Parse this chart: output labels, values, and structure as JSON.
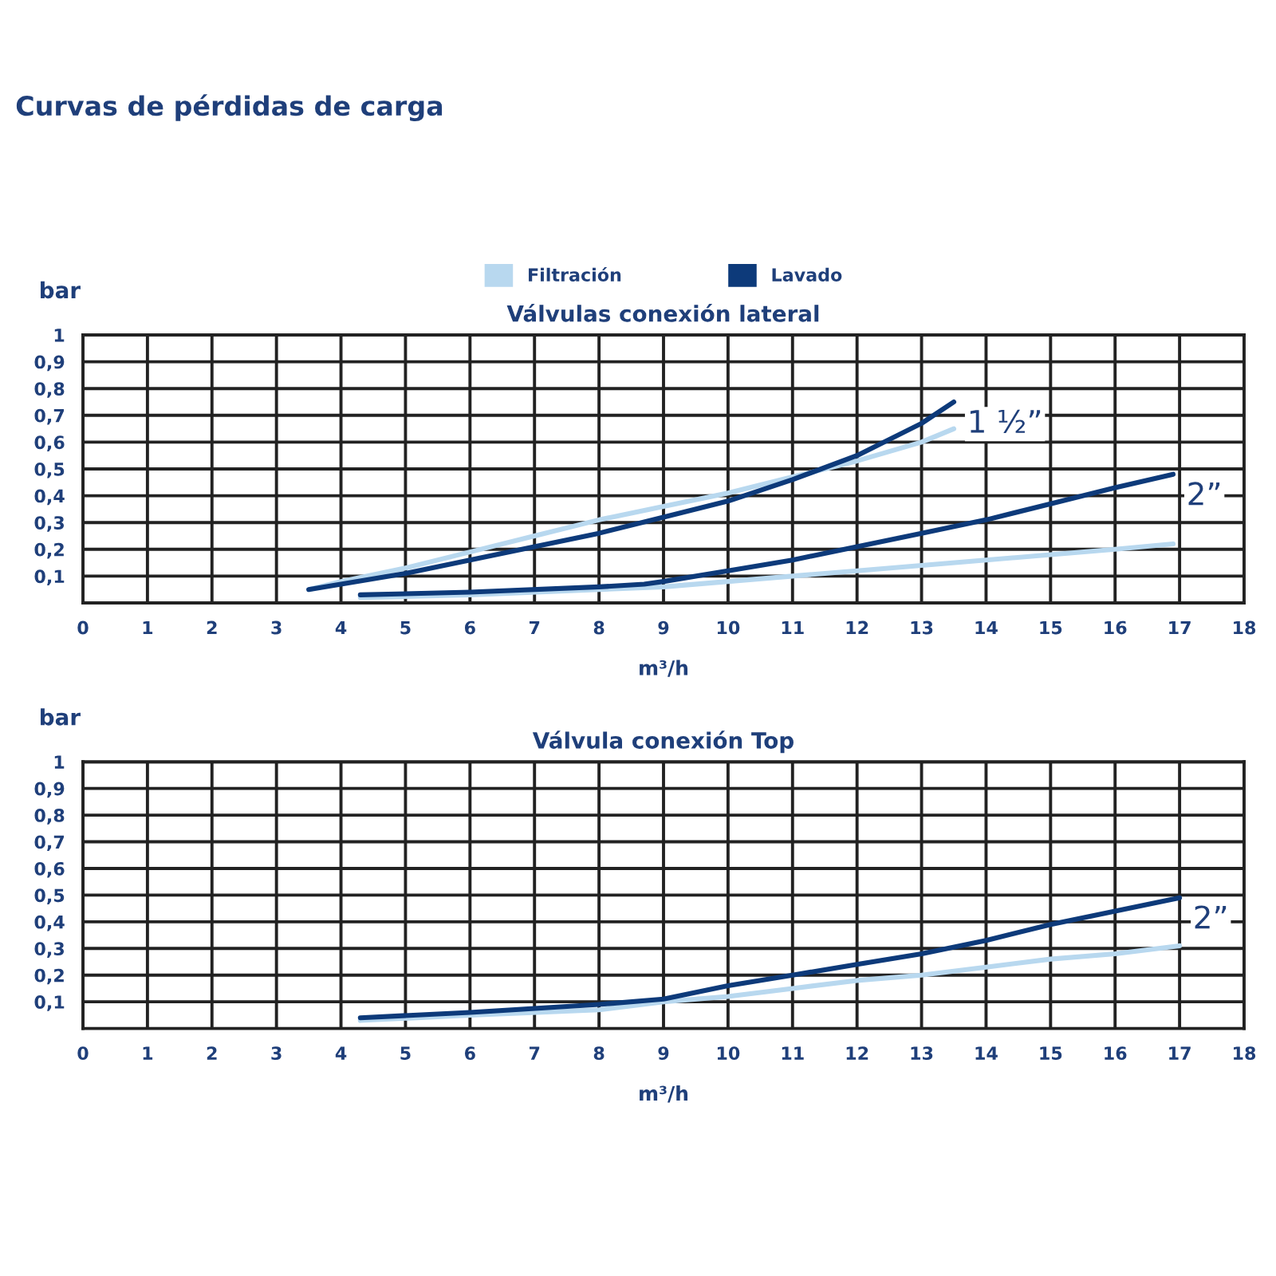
{
  "chart_data": [
    {
      "type": "line",
      "title": "Válvulas conexión lateral",
      "xlabel": "m³/h",
      "ylabel": "bar",
      "legend": "top",
      "grid": true,
      "line_style": "solid",
      "xlim": [
        0,
        18
      ],
      "ylim": [
        0,
        1
      ],
      "xticks": [
        0,
        1,
        2,
        3,
        4,
        5,
        6,
        7,
        8,
        9,
        10,
        11,
        12,
        13,
        14,
        15,
        16,
        17,
        18
      ],
      "yticks": [
        {
          "value": 0.1,
          "label": "0,1"
        },
        {
          "value": 0.2,
          "label": "0,2"
        },
        {
          "value": 0.3,
          "label": "0,3"
        },
        {
          "value": 0.4,
          "label": "0,4"
        },
        {
          "value": 0.5,
          "label": "0,5"
        },
        {
          "value": 0.6,
          "label": "0,6"
        },
        {
          "value": 0.7,
          "label": "0,7"
        },
        {
          "value": 0.8,
          "label": "0,8"
        },
        {
          "value": 0.9,
          "label": "0,9"
        },
        1
      ],
      "annotations": [
        {
          "text": "Curvas de pérdidas de carga"
        },
        {
          "text": "1 ½”",
          "x": 13.5,
          "y": 0.75
        },
        {
          "text": "2”",
          "x": 16.9,
          "y": 0.48
        }
      ],
      "series": [
        {
          "name": "Filtración",
          "color": "#b8d8ef",
          "x": [
            3.5,
            4,
            5,
            6,
            7,
            8,
            9,
            10,
            11,
            12,
            13,
            13.5
          ],
          "values": [
            0.05,
            0.08,
            0.13,
            0.19,
            0.25,
            0.31,
            0.36,
            0.41,
            0.47,
            0.53,
            0.6,
            0.65
          ]
        },
        {
          "name": "Lavado",
          "color": "#0d3a7a",
          "x": [
            3.5,
            5,
            6,
            7,
            8,
            9,
            10,
            11,
            12,
            13,
            13.5
          ],
          "values": [
            0.05,
            0.11,
            0.16,
            0.21,
            0.26,
            0.32,
            0.38,
            0.46,
            0.55,
            0.67,
            0.75
          ]
        },
        {
          "color": "#b8d8ef",
          "x": [
            4.3,
            6,
            8,
            9,
            10,
            11,
            12,
            13,
            14,
            15,
            16,
            16.9
          ],
          "values": [
            0.02,
            0.03,
            0.05,
            0.06,
            0.08,
            0.1,
            0.12,
            0.14,
            0.16,
            0.18,
            0.2,
            0.22
          ]
        },
        {
          "color": "#0d3a7a",
          "x": [
            4.3,
            6,
            8,
            8.7,
            9,
            10,
            11,
            12,
            13,
            14,
            15,
            16,
            16.9
          ],
          "values": [
            0.03,
            0.04,
            0.06,
            0.07,
            0.08,
            0.12,
            0.16,
            0.21,
            0.26,
            0.31,
            0.37,
            0.43,
            0.48
          ]
        }
      ]
    },
    {
      "type": "line",
      "title": "Válvula conexión Top",
      "xlabel": "m³/h",
      "ylabel": "bar",
      "grid": true,
      "line_style": "solid",
      "xlim": [
        0,
        18
      ],
      "ylim": [
        0,
        1
      ],
      "xticks": [
        0,
        1,
        2,
        3,
        4,
        5,
        6,
        7,
        8,
        9,
        10,
        11,
        12,
        13,
        14,
        15,
        16,
        17,
        18
      ],
      "yticks": [
        {
          "value": 0.1,
          "label": "0,1"
        },
        {
          "value": 0.2,
          "label": "0,2"
        },
        {
          "value": 0.3,
          "label": "0,3"
        },
        {
          "value": 0.4,
          "label": "0,4"
        },
        {
          "value": 0.5,
          "label": "0,5"
        },
        {
          "value": 0.6,
          "label": "0,6"
        },
        {
          "value": 0.7,
          "label": "0,7"
        },
        {
          "value": 0.8,
          "label": "0,8"
        },
        {
          "value": 0.9,
          "label": "0,9"
        },
        1
      ],
      "annotations": [
        {
          "text": "2”",
          "x": 17,
          "y": 0.49
        }
      ],
      "series": [
        {
          "color": "#b8d8ef",
          "x": [
            4.3,
            6,
            8,
            9,
            10,
            11,
            12,
            13,
            14,
            15,
            16,
            17
          ],
          "values": [
            0.03,
            0.05,
            0.07,
            0.1,
            0.12,
            0.15,
            0.18,
            0.2,
            0.23,
            0.26,
            0.28,
            0.31
          ]
        },
        {
          "color": "#0d3a7a",
          "x": [
            4.3,
            6,
            8,
            9,
            10,
            11,
            12,
            13,
            14,
            15,
            16,
            17
          ],
          "values": [
            0.04,
            0.06,
            0.09,
            0.11,
            0.16,
            0.2,
            0.24,
            0.28,
            0.33,
            0.39,
            0.44,
            0.49
          ]
        }
      ]
    }
  ]
}
